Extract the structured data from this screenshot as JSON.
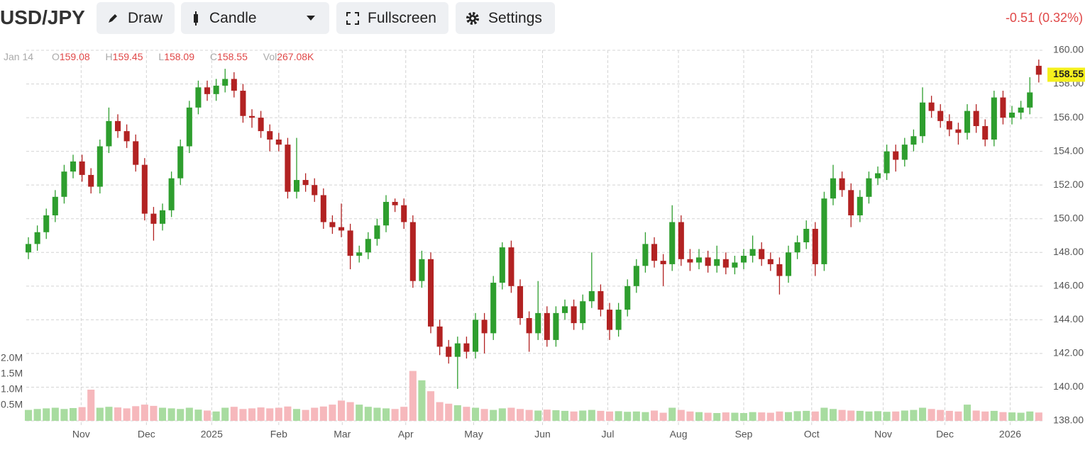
{
  "header": {
    "symbol": "USD/JPY",
    "buttons": [
      "Draw",
      "Candle",
      "Fullscreen",
      "Settings"
    ],
    "change": "-0.51 (0.32%)"
  },
  "chart_data": {
    "type": "candlestick",
    "date": "Jan 14",
    "legend_labels": [
      "O",
      "H",
      "L",
      "C",
      "Vol"
    ],
    "volume_label": "267.08K",
    "up_color": "#2e9e2e",
    "down_color": "#b22222",
    "volume_up_color": "#a8dca0",
    "volume_down_color": "#f6b8bc",
    "grid": true,
    "open": [
      148.0,
      148.5,
      149.2,
      150.2,
      151.3,
      152.8,
      153.4,
      152.6,
      151.9,
      154.3,
      155.8,
      155.2,
      154.6,
      153.2,
      150.3,
      149.7,
      150.5,
      152.4,
      154.3,
      156.6,
      157.8,
      157.4,
      157.9,
      158.3,
      157.6,
      156.1,
      156.0,
      155.2,
      154.7,
      154.4,
      151.6,
      152.3,
      152.0,
      151.4,
      149.8,
      149.5,
      149.3,
      147.8,
      148.0,
      148.8,
      149.6,
      151.0,
      150.8,
      149.8,
      146.3,
      147.6,
      143.6,
      142.4,
      141.8,
      142.6,
      142.1,
      144.0,
      143.2,
      146.2,
      148.3,
      146.0,
      144.1,
      143.2,
      144.4,
      142.8,
      144.4,
      144.8,
      143.8,
      145.1,
      145.7,
      144.6,
      143.4,
      144.6,
      146.0,
      147.2,
      148.5,
      147.5,
      147.3,
      149.8,
      147.6,
      147.4,
      147.7,
      147.2,
      147.6,
      147.1,
      147.4,
      147.8,
      148.2,
      147.6,
      147.3,
      146.6,
      148.0,
      148.6,
      149.4,
      147.3,
      151.2,
      152.4,
      151.7,
      150.2,
      151.3,
      152.4,
      152.7,
      154.0,
      153.5,
      154.4,
      154.9,
      156.9,
      156.4,
      155.8,
      155.3,
      155.1,
      156.4,
      155.5,
      154.7,
      157.2,
      156.0,
      156.3,
      156.6,
      159.08
    ],
    "high": [
      148.9,
      149.6,
      150.6,
      151.7,
      153.2,
      153.8,
      153.8,
      153.0,
      154.7,
      156.6,
      156.2,
      155.6,
      155.0,
      153.6,
      150.7,
      150.9,
      152.8,
      154.7,
      157.0,
      158.2,
      158.2,
      158.3,
      158.9,
      158.7,
      158.0,
      156.5,
      156.4,
      155.6,
      155.1,
      154.8,
      154.8,
      152.7,
      152.4,
      151.8,
      150.2,
      150.9,
      149.7,
      148.4,
      149.2,
      150.0,
      151.4,
      151.2,
      151.2,
      150.2,
      148.1,
      148.0,
      144.0,
      142.8,
      143.0,
      143.0,
      144.4,
      144.4,
      146.6,
      148.6,
      148.7,
      146.4,
      144.5,
      146.3,
      144.8,
      144.8,
      145.2,
      145.2,
      145.5,
      148.0,
      146.1,
      145.0,
      145.0,
      146.4,
      147.6,
      149.2,
      148.9,
      147.9,
      150.8,
      150.2,
      148.2,
      148.2,
      148.1,
      148.4,
      148.0,
      147.8,
      148.2,
      149.0,
      148.6,
      148.0,
      147.7,
      148.4,
      149.0,
      149.9,
      149.8,
      151.6,
      153.2,
      152.8,
      152.1,
      151.7,
      152.8,
      153.1,
      154.4,
      154.4,
      154.8,
      155.3,
      157.8,
      157.3,
      156.8,
      156.2,
      155.7,
      156.8,
      156.8,
      155.9,
      157.6,
      157.6,
      156.7,
      157.0,
      158.4,
      159.45
    ],
    "low": [
      147.6,
      148.1,
      148.8,
      149.8,
      150.9,
      152.4,
      152.2,
      151.5,
      151.5,
      153.9,
      154.8,
      154.2,
      152.8,
      149.9,
      148.7,
      149.3,
      150.1,
      152.0,
      153.9,
      156.2,
      157.0,
      157.0,
      157.5,
      157.2,
      155.7,
      155.4,
      154.8,
      154.0,
      154.0,
      151.2,
      151.2,
      151.6,
      151.0,
      149.4,
      149.1,
      148.9,
      147.0,
      147.4,
      147.6,
      148.4,
      149.2,
      150.4,
      149.4,
      145.9,
      145.9,
      143.2,
      141.9,
      141.4,
      139.9,
      141.7,
      141.7,
      142.0,
      142.8,
      145.8,
      145.6,
      143.7,
      142.1,
      142.8,
      142.4,
      142.4,
      144.0,
      143.4,
      143.4,
      144.7,
      144.2,
      142.8,
      143.0,
      144.2,
      145.6,
      146.8,
      147.1,
      146.0,
      146.9,
      147.2,
      146.9,
      147.0,
      146.8,
      146.8,
      146.7,
      146.7,
      147.0,
      147.4,
      147.2,
      146.9,
      145.5,
      146.2,
      147.6,
      148.2,
      146.6,
      146.9,
      150.8,
      151.3,
      149.5,
      149.8,
      150.9,
      152.0,
      152.3,
      152.8,
      153.1,
      154.0,
      154.5,
      156.0,
      155.4,
      154.9,
      154.4,
      154.7,
      155.1,
      154.3,
      154.3,
      155.6,
      155.6,
      155.9,
      156.2,
      158.09
    ],
    "close": [
      148.5,
      149.2,
      150.2,
      151.3,
      152.8,
      153.4,
      152.6,
      151.9,
      154.3,
      155.8,
      155.2,
      154.6,
      153.2,
      150.3,
      149.7,
      150.5,
      152.4,
      154.3,
      156.6,
      157.8,
      157.4,
      157.9,
      158.3,
      157.6,
      156.1,
      156.0,
      155.2,
      154.7,
      154.4,
      151.6,
      152.3,
      152.0,
      151.4,
      149.8,
      149.5,
      149.3,
      147.8,
      148.0,
      148.8,
      149.6,
      151.0,
      150.8,
      149.8,
      146.3,
      147.6,
      143.6,
      142.4,
      141.8,
      142.6,
      142.1,
      144.0,
      143.2,
      146.2,
      148.3,
      146.0,
      144.1,
      143.2,
      144.4,
      142.8,
      144.4,
      144.8,
      143.8,
      145.1,
      145.7,
      144.6,
      143.4,
      144.6,
      146.0,
      147.2,
      148.5,
      147.5,
      147.3,
      149.8,
      147.6,
      147.4,
      147.7,
      147.2,
      147.6,
      147.1,
      147.4,
      147.8,
      148.2,
      147.6,
      147.3,
      146.6,
      148.0,
      148.6,
      149.4,
      147.3,
      151.2,
      152.4,
      151.7,
      150.2,
      151.3,
      152.4,
      152.7,
      154.0,
      153.5,
      154.4,
      154.9,
      156.9,
      156.4,
      155.8,
      155.3,
      155.1,
      156.4,
      155.5,
      154.7,
      157.2,
      156.0,
      156.3,
      156.6,
      157.5,
      158.55
    ],
    "volume": [
      350000,
      380000,
      400000,
      420000,
      380000,
      410000,
      440000,
      1000000,
      420000,
      450000,
      430000,
      400000,
      470000,
      520000,
      480000,
      420000,
      400000,
      380000,
      420000,
      360000,
      330000,
      300000,
      420000,
      450000,
      380000,
      400000,
      430000,
      400000,
      420000,
      460000,
      380000,
      350000,
      420000,
      460000,
      520000,
      650000,
      600000,
      520000,
      450000,
      420000,
      400000,
      380000,
      450000,
      1600000,
      1300000,
      950000,
      600000,
      550000,
      500000,
      450000,
      420000,
      380000,
      350000,
      400000,
      420000,
      380000,
      350000,
      330000,
      360000,
      340000,
      320000,
      300000,
      330000,
      350000,
      320000,
      300000,
      310000,
      290000,
      300000,
      280000,
      330000,
      260000,
      420000,
      350000,
      300000,
      280000,
      260000,
      250000,
      270000,
      260000,
      250000,
      280000,
      270000,
      260000,
      300000,
      280000,
      310000,
      320000,
      300000,
      420000,
      380000,
      350000,
      330000,
      320000,
      300000,
      310000,
      290000,
      300000,
      330000,
      350000,
      420000,
      380000,
      350000,
      320000,
      300000,
      520000,
      330000,
      300000,
      320000,
      280000,
      270000,
      260000,
      300000,
      267080
    ],
    "xlim": [
      -0.24,
      113.49
    ],
    "xticks": [
      {
        "value": 5.9,
        "label": "Nov"
      },
      {
        "value": 13.2,
        "label": "Dec"
      },
      {
        "value": 20.5,
        "label": "2025"
      },
      {
        "value": 28.0,
        "label": "Feb"
      },
      {
        "value": 35.1,
        "label": "Mar"
      },
      {
        "value": 42.2,
        "label": "Apr"
      },
      {
        "value": 49.8,
        "label": "May"
      },
      {
        "value": 57.5,
        "label": "Jun"
      },
      {
        "value": 64.8,
        "label": "Jul"
      },
      {
        "value": 72.7,
        "label": "Aug"
      },
      {
        "value": 80.0,
        "label": "Sep"
      },
      {
        "value": 87.6,
        "label": "Oct"
      },
      {
        "value": 95.6,
        "label": "Nov"
      },
      {
        "value": 102.5,
        "label": "Dec"
      },
      {
        "value": 109.8,
        "label": "2026"
      }
    ],
    "ylim": [
      138,
      160
    ],
    "yticks": [
      {
        "value": 138,
        "label": "138.00"
      },
      {
        "value": 140,
        "label": "140.00"
      },
      {
        "value": 142,
        "label": "142.00"
      },
      {
        "value": 144,
        "label": "144.00"
      },
      {
        "value": 146,
        "label": "146.00"
      },
      {
        "value": 148,
        "label": "148.00"
      },
      {
        "value": 150,
        "label": "150.00"
      },
      {
        "value": 152,
        "label": "152.00"
      },
      {
        "value": 154,
        "label": "154.00"
      },
      {
        "value": 156,
        "label": "156.00"
      },
      {
        "value": 158,
        "label": "158.00"
      },
      {
        "value": 160,
        "label": "160.00"
      }
    ],
    "volume_ylim": [
      0,
      2000000
    ],
    "volume_yticks": [
      {
        "value": 500000,
        "label": "0.5M"
      },
      {
        "value": 1000000,
        "label": "1.0M"
      },
      {
        "value": 1500000,
        "label": "1.5M"
      },
      {
        "value": 2000000,
        "label": "2.0M"
      }
    ]
  }
}
